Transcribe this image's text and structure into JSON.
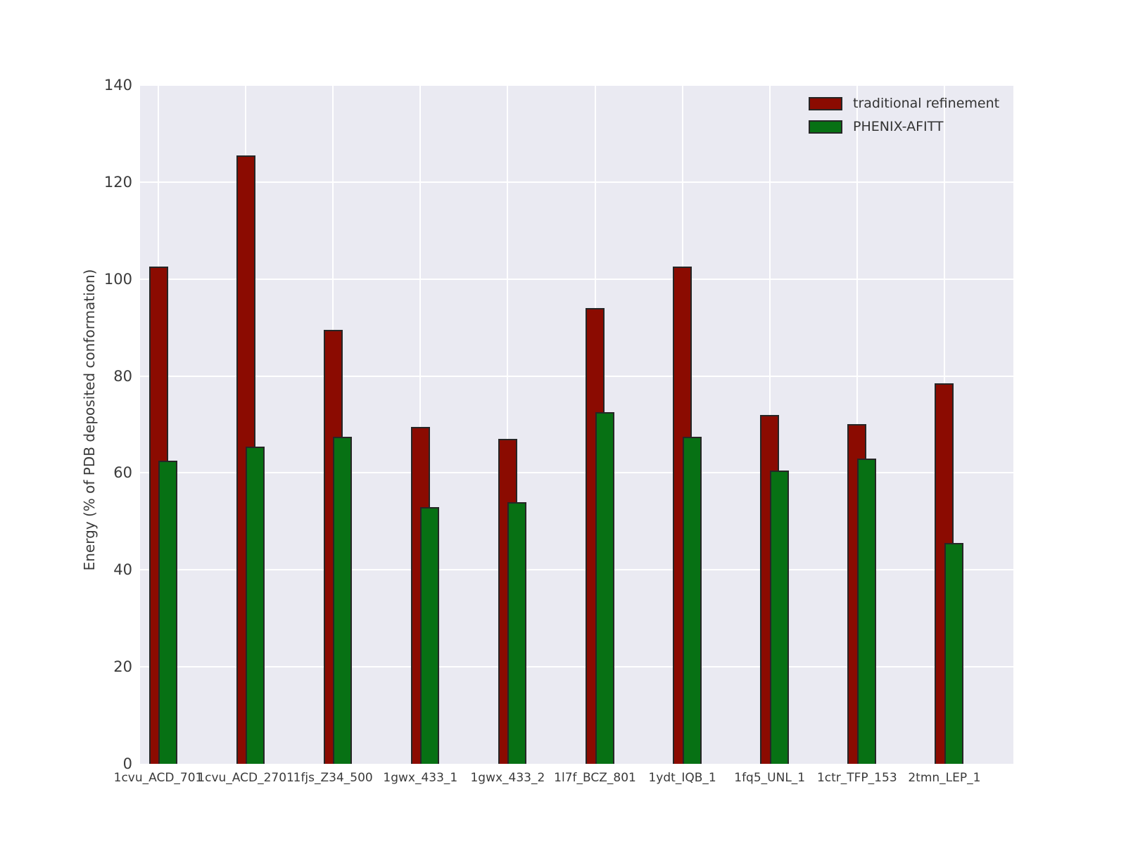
{
  "chart_data": {
    "type": "bar",
    "title": "",
    "xlabel": "",
    "ylabel": "Energy (% of PDB deposited conformation)",
    "ylim": [
      0,
      140
    ],
    "y_ticks": [
      0,
      20,
      40,
      60,
      80,
      100,
      120,
      140
    ],
    "grid": "on",
    "legend_position": "upper-right",
    "bar_style": "overlapping, green drawn in front of red, offset half bar-width",
    "categories": [
      "1cvu_ACD_701",
      "1cvu_ACD_2701",
      "1fjs_Z34_500",
      "1gwx_433_1",
      "1gwx_433_2",
      "1l7f_BCZ_801",
      "1ydt_IQB_1",
      "1fq5_UNL_1",
      "1ctr_TFP_153",
      "2tmn_LEP_1"
    ],
    "series": [
      {
        "name": "traditional refinement",
        "color": "#8b0b01",
        "values": [
          102.5,
          125.5,
          89.5,
          69.5,
          67,
          94,
          102.5,
          72,
          70,
          78.5
        ]
      },
      {
        "name": "PHENIX-AFITT",
        "color": "#077114",
        "values": [
          62.5,
          65.5,
          67.5,
          53,
          54,
          72.5,
          67.5,
          60.5,
          63,
          45.5
        ]
      }
    ],
    "colors": {
      "plot_background": "#eaeaf2",
      "figure_background": "#ffffff",
      "gridline": "#ffffff",
      "bar_edge": "#262626",
      "tick_label": "#3a3a3a",
      "legend_text": "#333333"
    }
  },
  "legend": {
    "items": [
      {
        "label": "traditional refinement",
        "color": "#8b0b01"
      },
      {
        "label": "PHENIX-AFITT",
        "color": "#077114"
      }
    ]
  },
  "axes": {
    "y_label": "Energy (% of PDB deposited conformation)"
  }
}
